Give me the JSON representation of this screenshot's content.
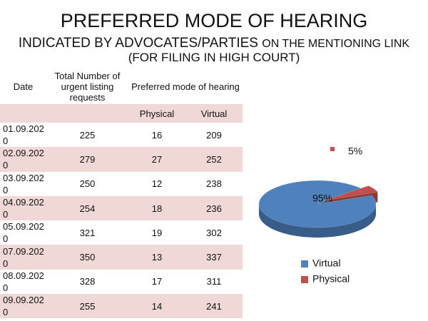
{
  "header": {
    "title": "PREFERRED MODE OF HEARING",
    "subtitle": [
      "INDICATED BY ADVOCATES/PARTIES",
      "ON THE MENTIONING LINK"
    ],
    "note": "(FOR FILING IN HIGH COURT)"
  },
  "table": {
    "columns": [
      "Date",
      "Total Number of urgent listing requests",
      "Preferred mode of hearing"
    ],
    "subcolumns": [
      "Physical",
      "Virtual"
    ],
    "rows": [
      [
        "01.09.2020",
        225,
        16,
        209
      ],
      [
        "02.09.2020",
        279,
        27,
        252
      ],
      [
        "03.09.2020",
        250,
        12,
        238
      ],
      [
        "04.09.2020",
        254,
        18,
        236
      ],
      [
        "05.09.2020",
        321,
        19,
        302
      ],
      [
        "07.09.2020",
        350,
        13,
        337
      ],
      [
        "08.09.2020",
        328,
        17,
        311
      ],
      [
        "09.09.2020",
        255,
        14,
        241
      ]
    ]
  },
  "chart_data": {
    "type": "pie",
    "categories": [
      "Virtual",
      "Physical"
    ],
    "values": [
      95,
      5
    ],
    "value_labels": [
      "95%",
      "5%"
    ],
    "colors": [
      "#4f81bd",
      "#c0504d"
    ],
    "legend": "bottom"
  }
}
